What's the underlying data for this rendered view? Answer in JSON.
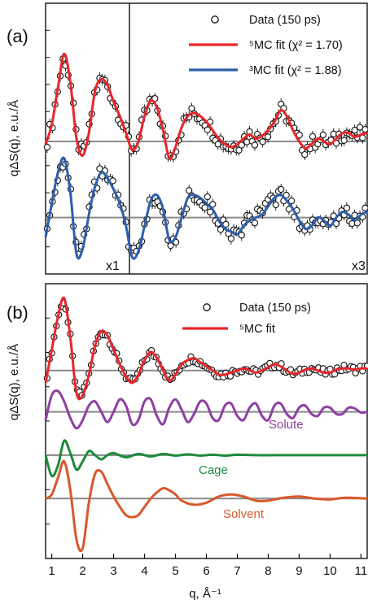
{
  "chart_data": [
    {
      "panel": "(a)",
      "type": "line",
      "ylabel": "qΔS(q), e.u./Å",
      "xlim": [
        0.8,
        11.2
      ],
      "scale_labels": [
        "x1",
        "x3"
      ],
      "legend": [
        {
          "kind": "markers",
          "label": "Data (150 ps)"
        },
        {
          "kind": "line",
          "label": "⁵MC fit (χ² = 1.70)",
          "color": "#e8262b"
        },
        {
          "kind": "line",
          "label": "³MC fit (χ² = 1.88)",
          "color": "#2d5fae"
        }
      ],
      "traces": [
        {
          "role": "5MC fit, upper",
          "color": "#e8262b",
          "baseline": 0,
          "x": [
            0.8,
            1.0,
            1.2,
            1.4,
            1.6,
            1.8,
            2.0,
            2.2,
            2.4,
            2.6,
            2.8,
            3.0,
            3.2,
            3.4,
            3.6,
            3.8,
            4.0,
            4.2,
            4.4,
            4.6,
            4.8,
            5.0,
            5.2,
            5.4,
            5.6,
            5.8,
            6.0,
            6.2,
            6.4,
            6.6,
            6.8,
            7.0,
            7.2,
            7.4,
            7.6,
            7.8,
            8.0,
            8.2,
            8.4,
            8.6,
            8.8,
            9.0,
            9.2,
            9.4,
            9.6,
            9.8,
            10.0,
            10.2,
            10.4,
            10.6,
            10.8,
            11.0,
            11.2
          ],
          "y": [
            -0.05,
            0.3,
            0.95,
            1.55,
            1.05,
            0.05,
            -0.25,
            0.15,
            0.9,
            1.1,
            1.0,
            0.7,
            0.45,
            0.15,
            -0.15,
            0.0,
            0.45,
            0.72,
            0.6,
            0.2,
            -0.3,
            -0.1,
            0.25,
            0.45,
            0.5,
            0.45,
            0.35,
            0.2,
            0.05,
            -0.05,
            -0.1,
            -0.05,
            0.05,
            0.12,
            0.05,
            0.1,
            0.2,
            0.35,
            0.55,
            0.45,
            0.2,
            0.0,
            -0.12,
            -0.05,
            0.05,
            0.0,
            -0.05,
            0.05,
            0.15,
            0.15,
            0.08,
            0.12,
            0.15
          ]
        },
        {
          "role": "3MC fit, lower",
          "color": "#2d5fae",
          "baseline": -1.35,
          "x": [
            0.8,
            1.0,
            1.2,
            1.4,
            1.6,
            1.8,
            2.0,
            2.2,
            2.4,
            2.6,
            2.8,
            3.0,
            3.2,
            3.4,
            3.6,
            3.8,
            4.0,
            4.2,
            4.4,
            4.6,
            4.8,
            5.0,
            5.2,
            5.4,
            5.6,
            5.8,
            6.0,
            6.2,
            6.4,
            6.6,
            6.8,
            7.0,
            7.2,
            7.4,
            7.6,
            7.8,
            8.0,
            8.2,
            8.4,
            8.6,
            8.8,
            9.0,
            9.2,
            9.4,
            9.6,
            9.8,
            10.0,
            10.2,
            10.4,
            10.6,
            10.8,
            11.0,
            11.2
          ],
          "y": [
            -1.7,
            -1.1,
            -0.55,
            -0.3,
            -0.9,
            -2.0,
            -1.9,
            -1.3,
            -0.8,
            -0.55,
            -0.65,
            -0.85,
            -1.1,
            -1.5,
            -2.05,
            -1.95,
            -1.5,
            -1.05,
            -0.95,
            -1.2,
            -1.75,
            -1.7,
            -1.35,
            -1.0,
            -0.95,
            -1.0,
            -1.1,
            -1.2,
            -1.4,
            -1.55,
            -1.6,
            -1.65,
            -1.5,
            -1.4,
            -1.35,
            -1.3,
            -1.15,
            -1.0,
            -0.95,
            -1.05,
            -1.2,
            -1.4,
            -1.55,
            -1.5,
            -1.35,
            -1.4,
            -1.5,
            -1.35,
            -1.25,
            -1.3,
            -1.4,
            -1.3,
            -1.25
          ]
        }
      ]
    },
    {
      "panel": "(b)",
      "type": "line",
      "ylabel": "qΔS(q), e.u./Å",
      "xlabel": "q, Å⁻¹",
      "xlim": [
        0.8,
        11.2
      ],
      "xticks": [
        1,
        2,
        3,
        4,
        5,
        6,
        7,
        8,
        9,
        10,
        11
      ],
      "legend": [
        {
          "kind": "markers",
          "label": "Data (150 ps)"
        },
        {
          "kind": "line",
          "label": "⁵MC fit",
          "color": "#e8262b"
        }
      ],
      "component_labels": [
        {
          "label": "Solute",
          "color": "#8e3fa2"
        },
        {
          "label": "Cage",
          "color": "#1c8b3a"
        },
        {
          "label": "Solvent",
          "color": "#d9582b"
        }
      ],
      "traces": [
        {
          "role": "5MC fit",
          "color": "#e8262b",
          "baseline": 0,
          "x": [
            0.8,
            1.0,
            1.2,
            1.4,
            1.6,
            1.8,
            2.0,
            2.2,
            2.4,
            2.6,
            2.8,
            3.0,
            3.2,
            3.4,
            3.6,
            3.8,
            4.0,
            4.2,
            4.4,
            4.6,
            4.8,
            5.0,
            5.2,
            5.4,
            5.6,
            5.8,
            6.0,
            6.2,
            6.4,
            6.6,
            6.8,
            7.0,
            7.2,
            7.4,
            7.6,
            7.8,
            8.0,
            8.2,
            8.4,
            8.6,
            8.8,
            9.0,
            9.2,
            9.4,
            9.6,
            9.8,
            10.0,
            10.2,
            10.4,
            10.6,
            10.8,
            11.0,
            11.2
          ],
          "y": [
            -0.3,
            0.5,
            1.3,
            1.75,
            0.8,
            -0.55,
            -0.6,
            -0.1,
            0.6,
            0.95,
            0.85,
            0.5,
            0.15,
            -0.15,
            -0.3,
            -0.1,
            0.25,
            0.45,
            0.3,
            0.0,
            -0.25,
            -0.1,
            0.15,
            0.25,
            0.3,
            0.2,
            0.1,
            0.0,
            -0.1,
            -0.1,
            -0.05,
            0.0,
            0.05,
            0.0,
            -0.05,
            0.0,
            0.08,
            0.15,
            0.1,
            0.0,
            -0.08,
            -0.05,
            0.02,
            0.05,
            0.0,
            -0.05,
            -0.05,
            0.02,
            0.05,
            0.05,
            0.02,
            0.05,
            0.05
          ]
        },
        {
          "role": "Solute",
          "color": "#8e3fa2",
          "baseline": -1.0,
          "x": [
            0.8,
            1.0,
            1.2,
            1.4,
            1.6,
            1.8,
            2.0,
            2.2,
            2.4,
            2.6,
            2.8,
            3.0,
            3.2,
            3.4,
            3.6,
            3.8,
            4.0,
            4.2,
            4.4,
            4.6,
            4.8,
            5.0,
            5.2,
            5.4,
            5.6,
            5.8,
            6.0,
            6.2,
            6.4,
            6.6,
            6.8,
            7.0,
            7.2,
            7.4,
            7.6,
            7.8,
            8.0,
            8.2,
            8.4,
            8.6,
            8.8,
            9.0,
            9.2,
            9.4,
            9.6,
            9.8,
            10.0,
            10.2,
            10.4,
            10.6,
            10.8,
            11.0,
            11.2
          ],
          "y": [
            -1.2,
            -0.6,
            -0.5,
            -0.75,
            -1.15,
            -1.4,
            -1.2,
            -0.85,
            -0.75,
            -1.0,
            -1.25,
            -1.0,
            -0.7,
            -0.85,
            -1.3,
            -1.2,
            -0.75,
            -0.7,
            -1.1,
            -1.3,
            -0.9,
            -0.7,
            -0.95,
            -1.25,
            -1.05,
            -0.75,
            -0.8,
            -1.15,
            -1.2,
            -0.85,
            -0.8,
            -1.1,
            -1.2,
            -0.9,
            -0.8,
            -1.1,
            -1.2,
            -0.85,
            -0.8,
            -1.05,
            -1.15,
            -0.9,
            -0.85,
            -1.05,
            -1.1,
            -0.9,
            -0.9,
            -1.05,
            -1.05,
            -0.9,
            -0.92,
            -1.02,
            -1.0
          ]
        },
        {
          "role": "Cage",
          "color": "#1c8b3a",
          "baseline": -2.05,
          "x": [
            0.8,
            1.0,
            1.2,
            1.4,
            1.6,
            1.8,
            2.0,
            2.2,
            2.4,
            2.6,
            2.8,
            3.0,
            3.4,
            3.8,
            4.2,
            4.6,
            5.0,
            5.4,
            5.8,
            6.2,
            6.6,
            7.0,
            7.6,
            8.2,
            8.8,
            9.4,
            10.0,
            10.6,
            11.2
          ],
          "y": [
            -2.05,
            -2.55,
            -2.3,
            -1.7,
            -2.0,
            -2.4,
            -2.2,
            -1.95,
            -2.05,
            -2.15,
            -2.05,
            -2.0,
            -2.1,
            -2.02,
            -2.08,
            -2.02,
            -2.06,
            -2.03,
            -2.06,
            -2.04,
            -2.06,
            -2.04,
            -2.05,
            -2.05,
            -2.05,
            -2.05,
            -2.05,
            -2.05,
            -2.05
          ]
        },
        {
          "role": "Solvent",
          "color": "#d9582b",
          "baseline": -3.1,
          "x": [
            0.8,
            1.0,
            1.2,
            1.4,
            1.6,
            1.8,
            2.0,
            2.2,
            2.4,
            2.6,
            2.8,
            3.0,
            3.2,
            3.4,
            3.6,
            3.8,
            4.0,
            4.2,
            4.4,
            4.6,
            4.8,
            5.0,
            5.2,
            5.6,
            6.0,
            6.4,
            6.8,
            7.2,
            7.6,
            8.0,
            8.5,
            9.0,
            9.5,
            10.0,
            10.5,
            11.2
          ],
          "y": [
            -3.1,
            -3.0,
            -2.6,
            -2.2,
            -2.9,
            -4.1,
            -4.3,
            -3.2,
            -2.5,
            -2.45,
            -2.75,
            -3.05,
            -3.3,
            -3.5,
            -3.55,
            -3.5,
            -3.3,
            -3.1,
            -2.95,
            -2.85,
            -2.9,
            -3.0,
            -3.15,
            -3.25,
            -3.2,
            -3.05,
            -3.0,
            -3.05,
            -3.15,
            -3.15,
            -3.08,
            -3.05,
            -3.1,
            -3.12,
            -3.08,
            -3.1
          ]
        }
      ]
    }
  ],
  "text": {
    "panel_a": "(a)",
    "panel_b": "(b)",
    "x1": "x1",
    "x3": "x3",
    "legend_a_data": "Data (150 ps)",
    "legend_a_5mc": "⁵MC fit (χ² = 1.70)",
    "legend_a_3mc": "³MC fit (χ² = 1.88)",
    "legend_b_data": "Data (150 ps)",
    "legend_b_5mc": "⁵MC fit",
    "solute": "Solute",
    "cage": "Cage",
    "solvent": "Solvent",
    "ylabel_a": "qΔS(q), e.u./Å",
    "ylabel_b": "qΔS(q), e.u./Å",
    "xlabel": "q, Å⁻¹"
  }
}
